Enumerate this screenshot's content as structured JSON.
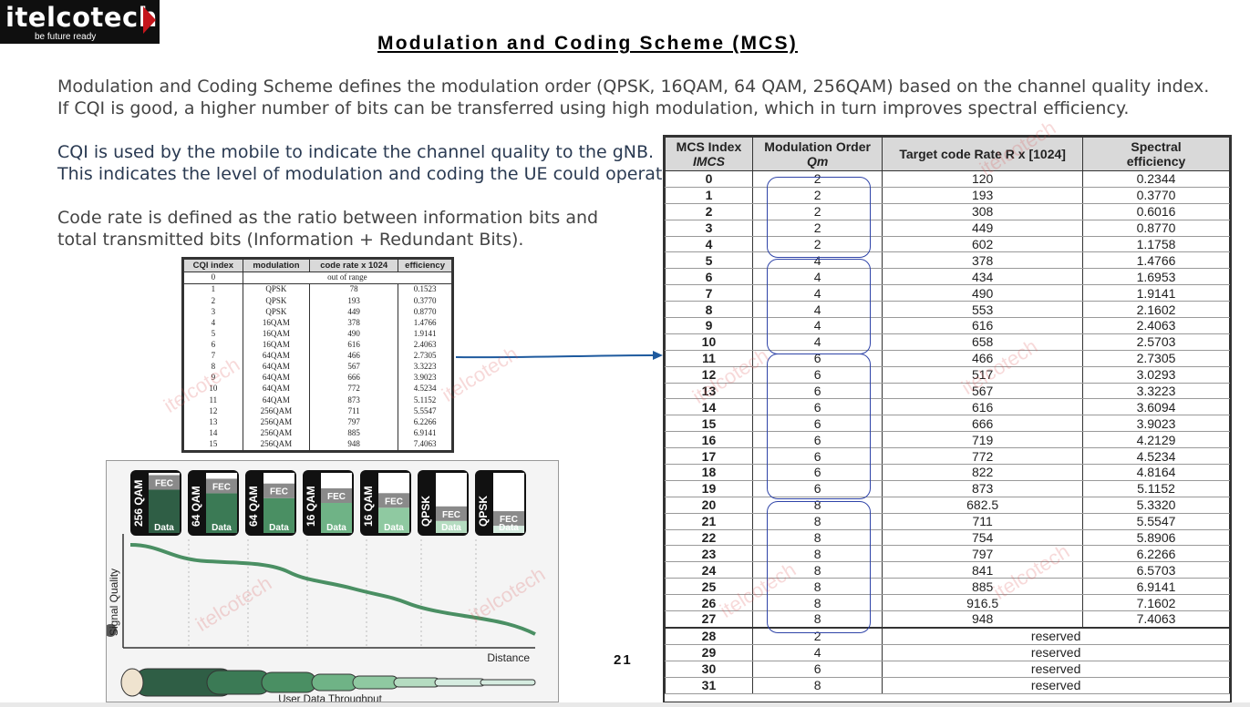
{
  "logo": {
    "brand": "itelcotech",
    "tagline": "be future ready"
  },
  "title": "Modulation and Coding Scheme (MCS)",
  "paragraphs": {
    "p1_line1": "Modulation and Coding Scheme defines the modulation order (QPSK, 16QAM, 64 QAM, 256QAM) based on the channel quality index.",
    "p1_line2": "If CQI is good, a higher number of bits can be transferred using high modulation, which in turn improves spectral efficiency.",
    "p2_line1": "CQI is used by the mobile to indicate the channel quality to the gNB.",
    "p2_line2": "This indicates the level of modulation and coding the UE could operate.",
    "p3_line1": "Code rate is defined as the ratio between information bits and",
    "p3_line2": "total transmitted bits (Information + Redundant Bits)."
  },
  "cqi_table": {
    "headers": [
      "CQI index",
      "modulation",
      "code rate x 1024",
      "efficiency"
    ],
    "out_of_range_index": "0",
    "out_of_range_label": "out of range",
    "rows": [
      [
        "1",
        "QPSK",
        "78",
        "0.1523"
      ],
      [
        "2",
        "QPSK",
        "193",
        "0.3770"
      ],
      [
        "3",
        "QPSK",
        "449",
        "0.8770"
      ],
      [
        "4",
        "16QAM",
        "378",
        "1.4766"
      ],
      [
        "5",
        "16QAM",
        "490",
        "1.9141"
      ],
      [
        "6",
        "16QAM",
        "616",
        "2.4063"
      ],
      [
        "7",
        "64QAM",
        "466",
        "2.7305"
      ],
      [
        "8",
        "64QAM",
        "567",
        "3.3223"
      ],
      [
        "9",
        "64QAM",
        "666",
        "3.9023"
      ],
      [
        "10",
        "64QAM",
        "772",
        "4.5234"
      ],
      [
        "11",
        "64QAM",
        "873",
        "5.1152"
      ],
      [
        "12",
        "256QAM",
        "711",
        "5.5547"
      ],
      [
        "13",
        "256QAM",
        "797",
        "6.2266"
      ],
      [
        "14",
        "256QAM",
        "885",
        "6.9141"
      ],
      [
        "15",
        "256QAM",
        "948",
        "7.4063"
      ]
    ]
  },
  "illustration": {
    "modulations": [
      "256 QAM",
      "64 QAM",
      "64 QAM",
      "16 QAM",
      "16 QAM",
      "QPSK",
      "QPSK"
    ],
    "fec_label": "FEC",
    "data_label": "Data",
    "data_fill_fraction": [
      0.72,
      0.66,
      0.58,
      0.5,
      0.42,
      0.2,
      0.12
    ],
    "y_axis": "Signal Quality",
    "x_axis": "Distance",
    "throughput_label": "User Data Throughput",
    "colors": [
      "#2f5e45",
      "#3b7a55",
      "#4a8f63",
      "#6fb386",
      "#8fc9a1",
      "#b5dcc1",
      "#d6ece0"
    ]
  },
  "mcs_table": {
    "headers": {
      "index": "MCS Index",
      "index_sub": "IMCS",
      "order": "Modulation Order",
      "order_sub": "Qm",
      "rate": "Target code Rate R x [1024]",
      "eff_1": "Spectral",
      "eff_2": "efficiency"
    },
    "rows": [
      [
        "0",
        "2",
        "120",
        "0.2344"
      ],
      [
        "1",
        "2",
        "193",
        "0.3770"
      ],
      [
        "2",
        "2",
        "308",
        "0.6016"
      ],
      [
        "3",
        "2",
        "449",
        "0.8770"
      ],
      [
        "4",
        "2",
        "602",
        "1.1758"
      ],
      [
        "5",
        "4",
        "378",
        "1.4766"
      ],
      [
        "6",
        "4",
        "434",
        "1.6953"
      ],
      [
        "7",
        "4",
        "490",
        "1.9141"
      ],
      [
        "8",
        "4",
        "553",
        "2.1602"
      ],
      [
        "9",
        "4",
        "616",
        "2.4063"
      ],
      [
        "10",
        "4",
        "658",
        "2.5703"
      ],
      [
        "11",
        "6",
        "466",
        "2.7305"
      ],
      [
        "12",
        "6",
        "517",
        "3.0293"
      ],
      [
        "13",
        "6",
        "567",
        "3.3223"
      ],
      [
        "14",
        "6",
        "616",
        "3.6094"
      ],
      [
        "15",
        "6",
        "666",
        "3.9023"
      ],
      [
        "16",
        "6",
        "719",
        "4.2129"
      ],
      [
        "17",
        "6",
        "772",
        "4.5234"
      ],
      [
        "18",
        "6",
        "822",
        "4.8164"
      ],
      [
        "19",
        "6",
        "873",
        "5.1152"
      ],
      [
        "20",
        "8",
        "682.5",
        "5.3320"
      ],
      [
        "21",
        "8",
        "711",
        "5.5547"
      ],
      [
        "22",
        "8",
        "754",
        "5.8906"
      ],
      [
        "23",
        "8",
        "797",
        "6.2266"
      ],
      [
        "24",
        "8",
        "841",
        "6.5703"
      ],
      [
        "25",
        "8",
        "885",
        "6.9141"
      ],
      [
        "26",
        "8",
        "916.5",
        "7.1602"
      ],
      [
        "27",
        "8",
        "948",
        "7.4063"
      ]
    ],
    "reserved_label": "reserved",
    "reserved_rows": [
      [
        "28",
        "2"
      ],
      [
        "29",
        "4"
      ],
      [
        "30",
        "6"
      ],
      [
        "31",
        "8"
      ]
    ]
  },
  "watermark": "itelcotech",
  "page_number": "21"
}
